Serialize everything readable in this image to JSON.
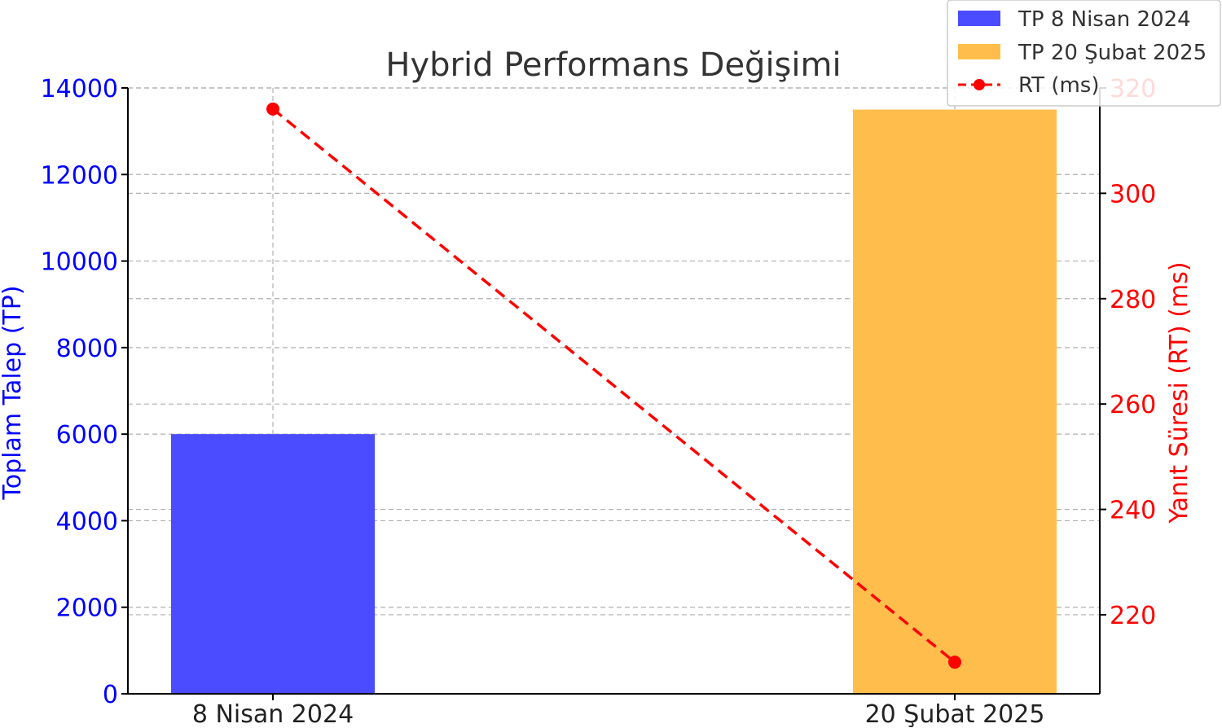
{
  "chart_data": {
    "type": "bar",
    "title": "Hybrid Performans Değişimi",
    "categories": [
      "8 Nisan 2024",
      "20 Şubat 2025"
    ],
    "bars": {
      "axis": "left",
      "ylabel": "Toplam Talep (TP)",
      "ylim": [
        0,
        14000
      ],
      "ticks": [
        0,
        2000,
        4000,
        6000,
        8000,
        10000,
        12000,
        14000
      ],
      "series": [
        {
          "name": "TP 8 Nisan 2024",
          "category": "8 Nisan 2024",
          "value": 6000,
          "color": "#4b4bff"
        },
        {
          "name": "TP 20 Şubat 2025",
          "category": "20 Şubat 2025",
          "value": 13500,
          "color": "#ffbe4b"
        }
      ]
    },
    "line": {
      "axis": "right",
      "name": "RT (ms)",
      "ylabel": "Yanıt Süresi (RT) (ms)",
      "ylim": [
        205,
        320
      ],
      "ticks": [
        220,
        240,
        260,
        280,
        300,
        320
      ],
      "values": [
        316,
        211
      ],
      "color": "#ff0000",
      "style": "dashed",
      "marker": "circle"
    },
    "grid": true,
    "legend": "top-right",
    "colors": {
      "left_axis": "#0000ff",
      "right_axis": "#ff0000",
      "title": "#333333"
    }
  }
}
